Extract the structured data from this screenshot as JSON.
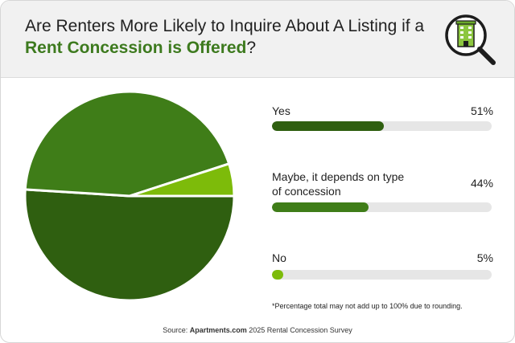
{
  "header": {
    "title_part1": "Are Renters More Likely to Inquire About A Listing if a ",
    "title_accent": "Rent Concession is Offered",
    "title_part2": "?",
    "logo_icon": "building-magnifier-icon"
  },
  "colors": {
    "dark_green": "#2f5f10",
    "mid_green": "#3f7d18",
    "light_green": "#7dbb0a",
    "track": "#e6e6e6",
    "accent_text": "#3d7a1e"
  },
  "chart_data": {
    "type": "pie",
    "categories": [
      "Yes",
      "Maybe, it depends on type of concession",
      "No"
    ],
    "values": [
      51,
      44,
      5
    ],
    "value_labels": [
      "51%",
      "44%",
      "5%"
    ],
    "colors": [
      "#2f5f10",
      "#3f7d18",
      "#7dbb0a"
    ]
  },
  "rows": [
    {
      "label_line1": "Yes",
      "label_line2": "",
      "pct": "51%",
      "value": 51,
      "color": "#2f5f10"
    },
    {
      "label_line1": "Maybe, it depends on type",
      "label_line2": "of concession",
      "pct": "44%",
      "value": 44,
      "color": "#3f7d18"
    },
    {
      "label_line1": "No",
      "label_line2": "",
      "pct": "5%",
      "value": 5,
      "color": "#7dbb0a"
    }
  ],
  "footnote": "*Percentage total may not add up to 100% due to rounding.",
  "source": {
    "prefix": "Source: ",
    "brand": "Apartments.com",
    "suffix": " 2025 Rental Concession Survey"
  }
}
